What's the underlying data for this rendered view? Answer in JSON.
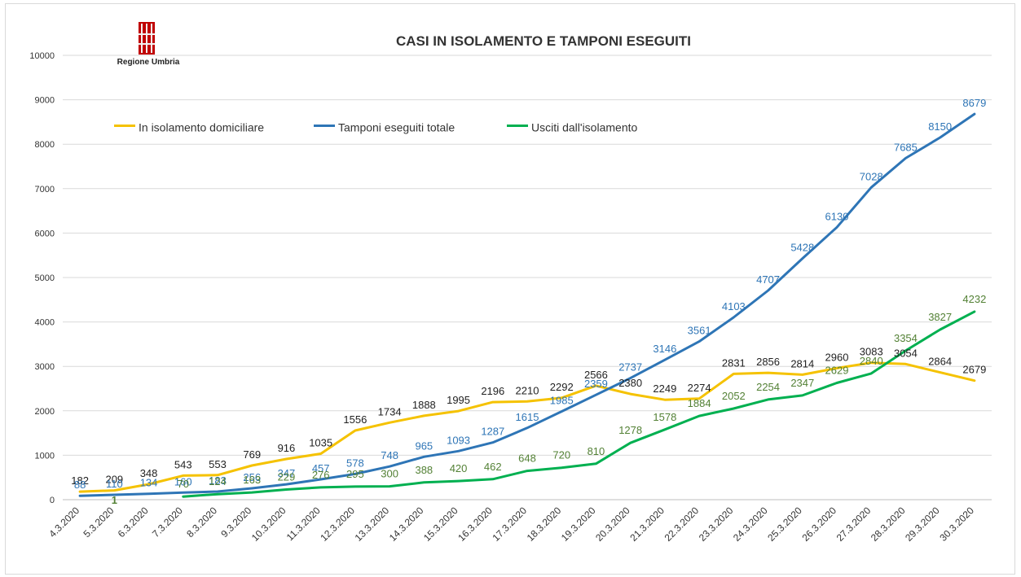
{
  "chart_data": {
    "type": "line",
    "title": "CASI IN ISOLAMENTO E TAMPONI ESEGUITI",
    "logo_text": "Regione Umbria",
    "categories": [
      "4.3.2020",
      "5.3.2020",
      "6.3.2020",
      "7.3.2020",
      "8.3.2020",
      "9.3.2020",
      "10.3.2020",
      "11.3.2020",
      "12.3.2020",
      "13.3.2020",
      "14.3.2020",
      "15.3.2020",
      "16.3.2020",
      "17.3.2020",
      "18.3.2020",
      "19.3.2020",
      "20.3.2020",
      "21.3.2020",
      "22.3.2020",
      "23.3.2020",
      "24.3.2020",
      "25.3.2020",
      "26.3.2020",
      "27.3.2020",
      "28.3.2020",
      "29.3.2020",
      "30.3.2020"
    ],
    "ylim": [
      0,
      10000
    ],
    "yticks": [
      0,
      1000,
      2000,
      3000,
      4000,
      5000,
      6000,
      7000,
      8000,
      9000,
      10000
    ],
    "grid": true,
    "legend_position": "top-left",
    "series": [
      {
        "name": "In isolamento domiciliare",
        "color": "#f5c200",
        "label_color": "#222222",
        "values": [
          182,
          209,
          348,
          543,
          553,
          769,
          916,
          1035,
          1556,
          1734,
          1888,
          1995,
          2196,
          2210,
          2292,
          2566,
          2380,
          2249,
          2274,
          2831,
          2856,
          2814,
          2960,
          3083,
          3054,
          2864,
          2679
        ]
      },
      {
        "name": "Tamponi eseguiti totale",
        "color": "#2e75b6",
        "label_color": "#2e75b6",
        "values": [
          88,
          110,
          134,
          160,
          183,
          256,
          347,
          457,
          578,
          748,
          965,
          1093,
          1287,
          1615,
          1985,
          2359,
          2737,
          3146,
          3561,
          4103,
          4707,
          5428,
          6130,
          7028,
          7685,
          8150,
          8679
        ]
      },
      {
        "name": "Usciti dall'isolamento",
        "color": "#00b050",
        "label_color": "#538135",
        "values": [
          null,
          1,
          null,
          70,
          124,
          163,
          229,
          276,
          295,
          300,
          388,
          420,
          462,
          648,
          720,
          810,
          1278,
          1578,
          1884,
          2052,
          2254,
          2347,
          2629,
          2840,
          3354,
          3827,
          4232
        ]
      }
    ]
  }
}
